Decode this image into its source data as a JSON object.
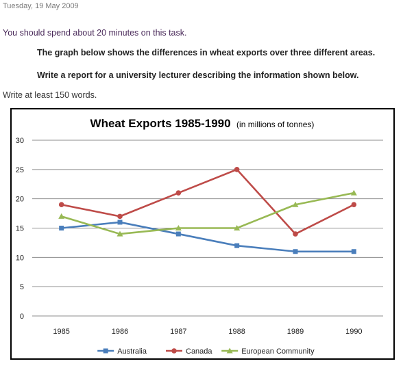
{
  "post": {
    "date": "Tuesday, 19 May 2009",
    "intro": "You should spend about 20 minutes on this task.",
    "task_line1": "The graph below shows the differences in wheat exports over three different areas.",
    "task_line2": "Write a report for a university lecturer describing the information shown below.",
    "word_count": "Write at least 150 words."
  },
  "chart_data": {
    "type": "line",
    "title": "Wheat Exports 1985-1990",
    "subtitle": "(in millions of tonnes)",
    "xlabel": "",
    "ylabel": "",
    "categories": [
      "1985",
      "1986",
      "1987",
      "1988",
      "1989",
      "1990"
    ],
    "ylim": [
      0,
      30
    ],
    "yticks": [
      0,
      5,
      10,
      15,
      20,
      25,
      30
    ],
    "grid": true,
    "legend_position": "bottom",
    "series": [
      {
        "name": "Australia",
        "color": "#4a7ebb",
        "marker": "square",
        "values": [
          15,
          16,
          14,
          12,
          11,
          11
        ]
      },
      {
        "name": "Canada",
        "color": "#be4b48",
        "marker": "circle",
        "values": [
          19,
          17,
          21,
          25,
          14,
          19
        ]
      },
      {
        "name": "European Community",
        "color": "#98b954",
        "marker": "triangle",
        "values": [
          17,
          14,
          15,
          15,
          19,
          21
        ]
      }
    ]
  }
}
